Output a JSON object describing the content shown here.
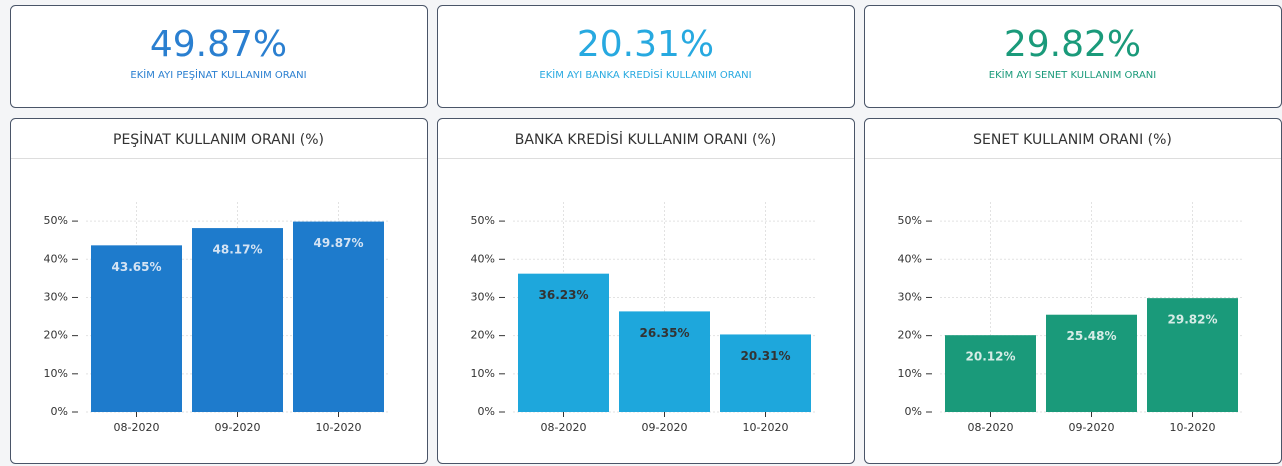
{
  "kpis": [
    {
      "value": "49.87%",
      "label": "EKİM AYI PEŞİNAT KULLANIM ORANI",
      "color": "#2a7fd0"
    },
    {
      "value": "20.31%",
      "label": "EKİM AYI BANKA KREDİSİ KULLANIM ORANI",
      "color": "#27a9e0"
    },
    {
      "value": "29.82%",
      "label": "EKİM AYI SENET KULLANIM ORANI",
      "color": "#1a9a7a"
    }
  ],
  "chart_data": [
    {
      "type": "bar",
      "title": "PEŞİNAT KULLANIM ORANI (%)",
      "categories": [
        "08-2020",
        "09-2020",
        "10-2020"
      ],
      "values": [
        43.65,
        48.17,
        49.87
      ],
      "value_labels": [
        "43.65%",
        "48.17%",
        "49.87%"
      ],
      "color": "#1e7bcc",
      "label_color": "#d4e3f3",
      "ylim": [
        0,
        55
      ],
      "yticks": [
        {
          "value": 0,
          "label": "0%"
        },
        {
          "value": 10,
          "label": "10%"
        },
        {
          "value": 20,
          "label": "20%"
        },
        {
          "value": 30,
          "label": "30%"
        },
        {
          "value": 40,
          "label": "40%"
        },
        {
          "value": 50,
          "label": "50%"
        }
      ],
      "grid": true
    },
    {
      "type": "bar",
      "title": "BANKA KREDİSİ KULLANIM ORANI (%)",
      "categories": [
        "08-2020",
        "09-2020",
        "10-2020"
      ],
      "values": [
        36.23,
        26.35,
        20.31
      ],
      "value_labels": [
        "36.23%",
        "26.35%",
        "20.31%"
      ],
      "color": "#1ea7dc",
      "label_color": "#333333",
      "ylim": [
        0,
        55
      ],
      "yticks": [
        {
          "value": 0,
          "label": "0%"
        },
        {
          "value": 10,
          "label": "10%"
        },
        {
          "value": 20,
          "label": "20%"
        },
        {
          "value": 30,
          "label": "30%"
        },
        {
          "value": 40,
          "label": "40%"
        },
        {
          "value": 50,
          "label": "50%"
        }
      ],
      "grid": true
    },
    {
      "type": "bar",
      "title": "SENET KULLANIM ORANI (%)",
      "categories": [
        "08-2020",
        "09-2020",
        "10-2020"
      ],
      "values": [
        20.12,
        25.48,
        29.82
      ],
      "value_labels": [
        "20.12%",
        "25.48%",
        "29.82%"
      ],
      "color": "#1a9a7a",
      "label_color": "#d6ece6",
      "ylim": [
        0,
        55
      ],
      "yticks": [
        {
          "value": 0,
          "label": "0%"
        },
        {
          "value": 10,
          "label": "10%"
        },
        {
          "value": 20,
          "label": "20%"
        },
        {
          "value": 30,
          "label": "30%"
        },
        {
          "value": 40,
          "label": "40%"
        },
        {
          "value": 50,
          "label": "50%"
        }
      ],
      "grid": true
    }
  ]
}
